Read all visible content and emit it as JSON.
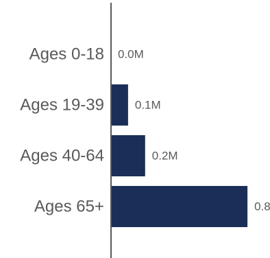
{
  "chart_data": {
    "type": "bar",
    "orientation": "horizontal",
    "title": "",
    "xlabel": "",
    "ylabel": "",
    "categories": [
      "Ages 0-18",
      "Ages 19-39",
      "Ages 40-64",
      "Ages 65+"
    ],
    "values": [
      0.0,
      0.1,
      0.2,
      0.8
    ],
    "value_labels": [
      "0.0M",
      "0.1M",
      "0.2M",
      "0.8M"
    ],
    "xlim": [
      0,
      0.9
    ],
    "grid": false,
    "legend": "none",
    "bar_color": "#1a2e57",
    "axis_color": "#595959",
    "text_color": "#595959"
  }
}
